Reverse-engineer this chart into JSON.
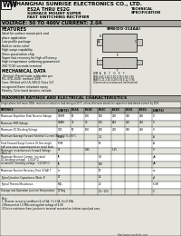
{
  "bg_color": "#d4d4cc",
  "light_gray": "#e4e4dc",
  "dark_gray": "#a8a8a0",
  "white": "#ffffff",
  "black": "#000000",
  "header_company": "SHANGHAI SUNRISE ELECTRONICS CO., LTD.",
  "header_line1": "ES2A THRU ES2G",
  "header_line2": "SURFACE MOUNT SUPER",
  "header_line3": "FAST SWITCHING RECTIFIER",
  "header_spec1": "TECHNICAL",
  "header_spec2": "SPECIFICATION",
  "header_voltage": "VOLTAGE: 50 TO 400V CURRENT: 2.0A",
  "features_title": "FEATURES",
  "features": [
    "Ideal for surface mount pick and",
    "place application",
    "Low profile package",
    "Built-in strain relief",
    "High surge capability",
    "Glass passivation chip",
    "Super fast recovery for high efficiency",
    "High temperature soldering guaranteed",
    "260°C/10 seconds terminal"
  ],
  "mech_title": "MECHANICAL DATA",
  "mech": [
    "Terminal: Plated leads solderable per",
    "MIL-STD-202E, method (208)",
    "Case: Molded with UL-94V-0 Class V-0",
    "recognized flame retardant epoxy",
    "Polarity: Color band denotes cathode"
  ],
  "package_name": "SMB(DO-214AA)",
  "ratings_title": "MAXIMUM RATINGS AND ELECTRICAL CHARACTERISTICS",
  "ratings_sub": "Single phase, half wave, 60Hz, resistive or inductive load rating at 25°C, unless otherwise stated, for capacitive load derate current by 20%.",
  "col_headers": [
    "RATINGS",
    "(UNITS)",
    "ES2A",
    "ES2B",
    "ES2C",
    "ES2D",
    "ES2E",
    "ES2G",
    "(UNITS)"
  ],
  "rows": [
    [
      "Maximum Repetitive Peak Reverse Voltage",
      "VRRM",
      "50",
      "100",
      "150",
      "200",
      "300",
      "400",
      "V"
    ],
    [
      "Maximum RMS Voltage",
      "VRMS",
      "35",
      "70",
      "105",
      "140",
      "210",
      "280",
      "V"
    ],
    [
      "Maximum DC Blocking Voltage",
      "VDC",
      "50",
      "100",
      "150",
      "200",
      "300",
      "400",
      "V"
    ],
    [
      "Maximum Average Forward Rectified Current (Note 1) TL=50°C",
      "IF(AV)",
      "",
      "",
      "2.0",
      "",
      "",
      "",
      "A"
    ],
    [
      "Peak Forward Surge Current (8.3ms single\nhalf sine-wave superimposed on rated load)",
      "IFSM",
      "",
      "",
      "50",
      "",
      "",
      "",
      "A"
    ],
    [
      "Maximum Instantaneous Forward Voltage\n(Note 2)",
      "VF",
      "",
      "0.95",
      "",
      "1.25",
      "",
      "",
      "V"
    ],
    [
      "Maximum Reverse Current  (at rated\nDC blocking voltage)   1.0(25°C)",
      "IR",
      "",
      "",
      "5.0",
      "",
      "",
      "",
      "μA"
    ],
    [
      "at rated DC blocking voltage   1.0(100°C)",
      "IR",
      "",
      "",
      "500",
      "",
      "",
      "",
      "μA"
    ],
    [
      "Maximum Reverse Recovery Time (0.5A) T",
      "trr",
      "",
      "",
      "50",
      "",
      "",
      "",
      "ns"
    ],
    [
      "Typical Junction Capacitance (Note 3)",
      "CT",
      "",
      "",
      "25",
      "",
      "",
      "",
      "pF"
    ],
    [
      "Typical Thermal Resistance",
      "RθJL",
      "",
      "",
      "20",
      "",
      "",
      "",
      "°C/W"
    ],
    [
      "Storage and Operation Junction Temperature",
      "TJ,Tstg",
      "",
      "",
      "-55~150",
      "",
      "",
      "",
      "°C"
    ]
  ],
  "notes": [
    "Note:",
    "1. Reverse recovery conditions IL=0.5A, IF=1.0A, Irr=0.25A.",
    "2.Measured at 1.0 MHz and applied voltage of 4.0V.",
    "3.Device resistance from junction to terminal mounted on bottom equal pad area."
  ],
  "website": "http://www.nro-diode.com"
}
